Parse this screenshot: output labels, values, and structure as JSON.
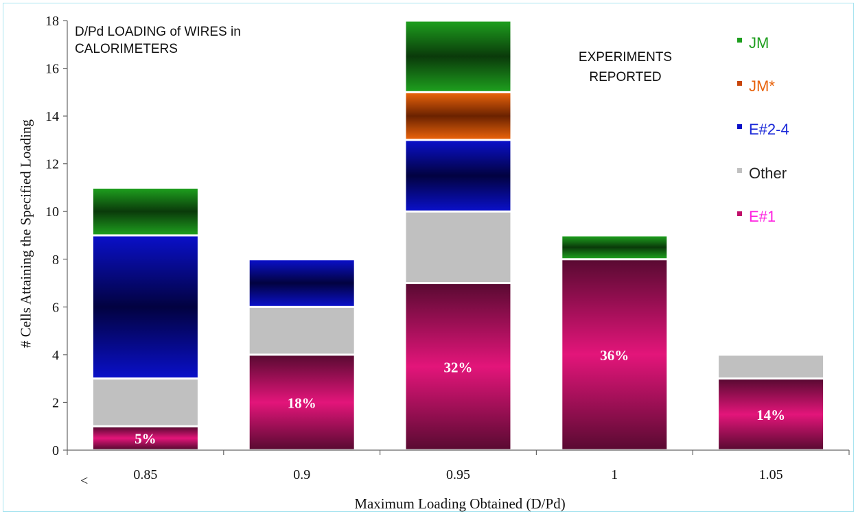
{
  "chart_data": {
    "type": "bar",
    "stacked": true,
    "title": "D/Pd LOADING of WIRES in CALORIMETERS",
    "subtitle": "EXPERIMENTS REPORTED",
    "xlabel": "Maximum Loading Obtained (D/Pd)",
    "ylabel": "# Cells Attaining  the Specified Loading",
    "x_prefix": "<",
    "categories": [
      "0.85",
      "0.9",
      "0.95",
      "1",
      "1.05"
    ],
    "ylim": [
      0,
      18
    ],
    "yticks": [
      "0",
      "2",
      "4",
      "6",
      "8",
      "10",
      "12",
      "14",
      "16",
      "18"
    ],
    "grid": false,
    "legend_position": "right",
    "series": [
      {
        "name": "E#1",
        "values": [
          1,
          4,
          7,
          8,
          3
        ],
        "color": "#e3157a",
        "dark": "#5a0a32"
      },
      {
        "name": "Other",
        "values": [
          2,
          2,
          3,
          0,
          1
        ],
        "color": "#c0c0c0",
        "dark": "#c0c0c0"
      },
      {
        "name": "E#2-4",
        "values": [
          6,
          2,
          3,
          0,
          0
        ],
        "color": "#0a10c8",
        "dark": "#020240"
      },
      {
        "name": "JM*",
        "values": [
          0,
          0,
          2,
          0,
          0
        ],
        "color": "#e8620a",
        "dark": "#6a2200"
      },
      {
        "name": "JM",
        "values": [
          2,
          0,
          3,
          1,
          0
        ],
        "color": "#1e9e1e",
        "dark": "#0a3a0a"
      }
    ],
    "data_labels": [
      "5%",
      "18%",
      "32%",
      "36%",
      "14%"
    ],
    "legend": [
      {
        "name": "JM",
        "color": "#1e9e1e",
        "text_color": "#1e9e1e"
      },
      {
        "name": "JM*",
        "color": "#c8460a",
        "text_color": "#e8620a"
      },
      {
        "name": "E#2-4",
        "color": "#0a10c8",
        "text_color": "#1a28d8"
      },
      {
        "name": "Other",
        "color": "#c0c0c0",
        "text_color": "#222222"
      },
      {
        "name": "E#1",
        "color": "#c0106a",
        "text_color": "#ff20e0"
      }
    ]
  }
}
